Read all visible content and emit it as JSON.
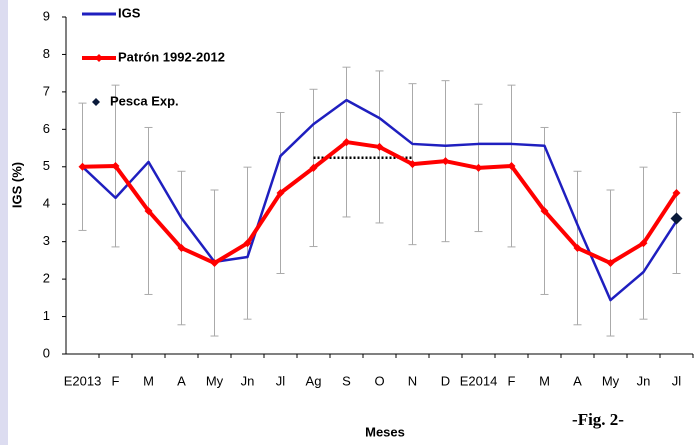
{
  "chart_data": {
    "type": "line",
    "ylabel": "IGS (%)",
    "xlabel": "Meses",
    "annotation": "-Fig. 2-",
    "categories": [
      "E2013",
      "F",
      "M",
      "A",
      "My",
      "Jn",
      "Jl",
      "Ag",
      "S",
      "O",
      "N",
      "D",
      "E2014",
      "F",
      "M",
      "A",
      "My",
      "Jn",
      "Jl"
    ],
    "ylim": [
      0,
      9
    ],
    "yticks": [
      0,
      1,
      2,
      3,
      4,
      5,
      6,
      7,
      8,
      9
    ],
    "legend": "top-left",
    "series": [
      {
        "name": "IGS",
        "color": "#1f1fbf",
        "marker": "none",
        "values": [
          5.0,
          4.17,
          5.13,
          3.63,
          2.46,
          2.59,
          5.29,
          6.14,
          6.78,
          6.3,
          5.61,
          5.56,
          5.61,
          5.61,
          5.56,
          3.45,
          1.44,
          2.19,
          3.55
        ]
      },
      {
        "name": "Patrón 1992-2012",
        "color": "#ff0000",
        "marker": "diamond",
        "values": [
          5.0,
          5.02,
          3.82,
          2.83,
          2.43,
          2.96,
          4.3,
          4.97,
          5.66,
          5.53,
          5.07,
          5.15,
          4.97,
          5.02,
          3.82,
          2.83,
          2.43,
          2.96,
          4.3
        ],
        "errors": [
          1.7,
          2.16,
          2.23,
          2.05,
          1.95,
          2.03,
          2.15,
          2.1,
          2.0,
          2.03,
          2.15,
          2.15,
          1.7,
          2.16,
          2.23,
          2.05,
          1.95,
          2.03,
          2.15
        ],
        "error_color": "#aaaaaa"
      },
      {
        "name": "Pesca Exp.",
        "color": "#0a1a3a",
        "marker": "diamond-only",
        "values": [
          null,
          null,
          null,
          null,
          null,
          null,
          null,
          null,
          null,
          null,
          null,
          null,
          null,
          null,
          null,
          null,
          null,
          null,
          3.62
        ]
      }
    ],
    "dotted_line": {
      "color": "#000000",
      "values": [
        null,
        null,
        null,
        null,
        null,
        null,
        null,
        5.24,
        5.24,
        5.24,
        5.24,
        null,
        null,
        null,
        null,
        null,
        null,
        null,
        null
      ]
    }
  }
}
